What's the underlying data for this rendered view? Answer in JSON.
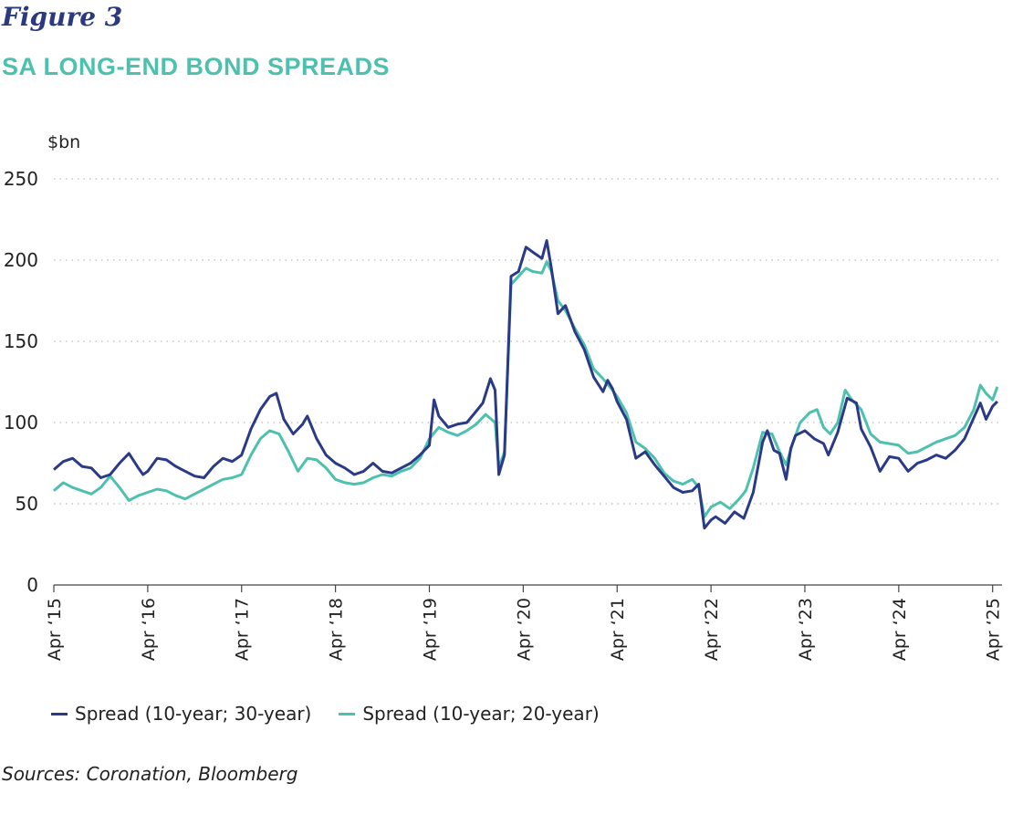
{
  "figure_label": "Figure 3",
  "source": "Sources: Coronation, Bloomberg",
  "colors": {
    "series1": "#2b3a86",
    "series2": "#4dc1ae",
    "title": "#4dc1ae",
    "grid": "#bbbbbb"
  },
  "chart_data": {
    "type": "line",
    "title": "SA LONG-END BOND SPREADS",
    "ylabel": "$bn",
    "xlabel": "",
    "ylim": [
      0,
      250
    ],
    "yticks": [
      0,
      50,
      100,
      150,
      200,
      250
    ],
    "xlim": [
      2015.25,
      2025.35
    ],
    "xticks": [
      {
        "label": "Apr ‘15",
        "x": 2015.25
      },
      {
        "label": "Apr ‘16",
        "x": 2016.25
      },
      {
        "label": "Apr ‘17",
        "x": 2017.25
      },
      {
        "label": "Apr ‘18",
        "x": 2018.25
      },
      {
        "label": "Apr ‘19",
        "x": 2019.25
      },
      {
        "label": "Apr ‘20",
        "x": 2020.25
      },
      {
        "label": "Apr ‘21",
        "x": 2021.25
      },
      {
        "label": "Apr ‘22",
        "x": 2022.25
      },
      {
        "label": "Apr ‘23",
        "x": 2023.25
      },
      {
        "label": "Apr ‘24",
        "x": 2024.25
      },
      {
        "label": "Apr ‘25",
        "x": 2025.25
      }
    ],
    "grid": "horizontal dotted",
    "legend_position": "bottom-left",
    "series": [
      {
        "name": "Spread (10-year; 30-year)",
        "color": "#2b3a86",
        "points": [
          [
            2015.25,
            71
          ],
          [
            2015.35,
            76
          ],
          [
            2015.45,
            78
          ],
          [
            2015.55,
            73
          ],
          [
            2015.65,
            72
          ],
          [
            2015.75,
            66
          ],
          [
            2015.85,
            68
          ],
          [
            2015.95,
            75
          ],
          [
            2016.05,
            81
          ],
          [
            2016.15,
            72
          ],
          [
            2016.2,
            68
          ],
          [
            2016.25,
            70
          ],
          [
            2016.35,
            78
          ],
          [
            2016.45,
            77
          ],
          [
            2016.55,
            73
          ],
          [
            2016.65,
            70
          ],
          [
            2016.75,
            67
          ],
          [
            2016.85,
            66
          ],
          [
            2016.95,
            73
          ],
          [
            2017.05,
            78
          ],
          [
            2017.15,
            76
          ],
          [
            2017.25,
            80
          ],
          [
            2017.35,
            96
          ],
          [
            2017.45,
            108
          ],
          [
            2017.55,
            116
          ],
          [
            2017.62,
            118
          ],
          [
            2017.7,
            102
          ],
          [
            2017.8,
            93
          ],
          [
            2017.9,
            99
          ],
          [
            2017.95,
            104
          ],
          [
            2018.05,
            90
          ],
          [
            2018.15,
            80
          ],
          [
            2018.25,
            75
          ],
          [
            2018.35,
            72
          ],
          [
            2018.45,
            68
          ],
          [
            2018.55,
            70
          ],
          [
            2018.65,
            75
          ],
          [
            2018.75,
            70
          ],
          [
            2018.85,
            69
          ],
          [
            2018.95,
            72
          ],
          [
            2019.05,
            75
          ],
          [
            2019.15,
            80
          ],
          [
            2019.25,
            86
          ],
          [
            2019.3,
            114
          ],
          [
            2019.35,
            104
          ],
          [
            2019.45,
            97
          ],
          [
            2019.55,
            99
          ],
          [
            2019.65,
            100
          ],
          [
            2019.75,
            107
          ],
          [
            2019.82,
            112
          ],
          [
            2019.9,
            127
          ],
          [
            2019.95,
            120
          ],
          [
            2019.99,
            68
          ],
          [
            2020.05,
            80
          ],
          [
            2020.12,
            190
          ],
          [
            2020.2,
            193
          ],
          [
            2020.28,
            208
          ],
          [
            2020.35,
            205
          ],
          [
            2020.45,
            201
          ],
          [
            2020.5,
            212
          ],
          [
            2020.55,
            195
          ],
          [
            2020.62,
            167
          ],
          [
            2020.7,
            172
          ],
          [
            2020.8,
            156
          ],
          [
            2020.9,
            145
          ],
          [
            2021.0,
            128
          ],
          [
            2021.1,
            119
          ],
          [
            2021.15,
            126
          ],
          [
            2021.2,
            121
          ],
          [
            2021.25,
            113
          ],
          [
            2021.35,
            102
          ],
          [
            2021.45,
            78
          ],
          [
            2021.55,
            82
          ],
          [
            2021.65,
            74
          ],
          [
            2021.75,
            67
          ],
          [
            2021.85,
            60
          ],
          [
            2021.95,
            57
          ],
          [
            2022.05,
            58
          ],
          [
            2022.12,
            62
          ],
          [
            2022.18,
            35
          ],
          [
            2022.25,
            40
          ],
          [
            2022.3,
            42
          ],
          [
            2022.4,
            38
          ],
          [
            2022.5,
            45
          ],
          [
            2022.6,
            41
          ],
          [
            2022.7,
            57
          ],
          [
            2022.8,
            88
          ],
          [
            2022.85,
            95
          ],
          [
            2022.92,
            83
          ],
          [
            2022.98,
            81
          ],
          [
            2023.05,
            65
          ],
          [
            2023.1,
            84
          ],
          [
            2023.15,
            92
          ],
          [
            2023.25,
            95
          ],
          [
            2023.35,
            90
          ],
          [
            2023.45,
            87
          ],
          [
            2023.5,
            80
          ],
          [
            2023.6,
            94
          ],
          [
            2023.7,
            115
          ],
          [
            2023.8,
            112
          ],
          [
            2023.85,
            96
          ],
          [
            2023.95,
            85
          ],
          [
            2024.05,
            70
          ],
          [
            2024.15,
            79
          ],
          [
            2024.25,
            78
          ],
          [
            2024.35,
            70
          ],
          [
            2024.45,
            75
          ],
          [
            2024.55,
            77
          ],
          [
            2024.65,
            80
          ],
          [
            2024.75,
            78
          ],
          [
            2024.85,
            83
          ],
          [
            2024.95,
            90
          ],
          [
            2025.05,
            103
          ],
          [
            2025.12,
            112
          ],
          [
            2025.18,
            102
          ],
          [
            2025.25,
            110
          ],
          [
            2025.3,
            113
          ]
        ]
      },
      {
        "name": "Spread (10-year; 20-year)",
        "color": "#4dc1ae",
        "points": [
          [
            2015.25,
            58
          ],
          [
            2015.35,
            63
          ],
          [
            2015.45,
            60
          ],
          [
            2015.55,
            58
          ],
          [
            2015.65,
            56
          ],
          [
            2015.75,
            60
          ],
          [
            2015.85,
            67
          ],
          [
            2015.95,
            60
          ],
          [
            2016.05,
            52
          ],
          [
            2016.15,
            55
          ],
          [
            2016.25,
            57
          ],
          [
            2016.35,
            59
          ],
          [
            2016.45,
            58
          ],
          [
            2016.55,
            55
          ],
          [
            2016.65,
            53
          ],
          [
            2016.75,
            56
          ],
          [
            2016.85,
            59
          ],
          [
            2016.95,
            62
          ],
          [
            2017.05,
            65
          ],
          [
            2017.15,
            66
          ],
          [
            2017.25,
            68
          ],
          [
            2017.35,
            80
          ],
          [
            2017.45,
            90
          ],
          [
            2017.55,
            95
          ],
          [
            2017.65,
            93
          ],
          [
            2017.75,
            82
          ],
          [
            2017.85,
            70
          ],
          [
            2017.95,
            78
          ],
          [
            2018.05,
            77
          ],
          [
            2018.15,
            72
          ],
          [
            2018.25,
            65
          ],
          [
            2018.35,
            63
          ],
          [
            2018.45,
            62
          ],
          [
            2018.55,
            63
          ],
          [
            2018.65,
            66
          ],
          [
            2018.75,
            68
          ],
          [
            2018.85,
            67
          ],
          [
            2018.95,
            70
          ],
          [
            2019.05,
            72
          ],
          [
            2019.15,
            78
          ],
          [
            2019.25,
            90
          ],
          [
            2019.35,
            97
          ],
          [
            2019.45,
            94
          ],
          [
            2019.55,
            92
          ],
          [
            2019.65,
            95
          ],
          [
            2019.75,
            99
          ],
          [
            2019.85,
            105
          ],
          [
            2019.95,
            100
          ],
          [
            2019.99,
            72
          ],
          [
            2020.05,
            82
          ],
          [
            2020.12,
            185
          ],
          [
            2020.2,
            190
          ],
          [
            2020.28,
            195
          ],
          [
            2020.35,
            193
          ],
          [
            2020.45,
            192
          ],
          [
            2020.5,
            199
          ],
          [
            2020.55,
            193
          ],
          [
            2020.62,
            175
          ],
          [
            2020.7,
            169
          ],
          [
            2020.8,
            158
          ],
          [
            2020.9,
            148
          ],
          [
            2021.0,
            133
          ],
          [
            2021.1,
            127
          ],
          [
            2021.2,
            120
          ],
          [
            2021.25,
            116
          ],
          [
            2021.35,
            106
          ],
          [
            2021.45,
            88
          ],
          [
            2021.55,
            84
          ],
          [
            2021.65,
            78
          ],
          [
            2021.75,
            69
          ],
          [
            2021.85,
            64
          ],
          [
            2021.95,
            62
          ],
          [
            2022.05,
            65
          ],
          [
            2022.12,
            60
          ],
          [
            2022.18,
            42
          ],
          [
            2022.25,
            48
          ],
          [
            2022.35,
            51
          ],
          [
            2022.45,
            47
          ],
          [
            2022.55,
            53
          ],
          [
            2022.62,
            58
          ],
          [
            2022.7,
            72
          ],
          [
            2022.8,
            94
          ],
          [
            2022.9,
            93
          ],
          [
            2022.98,
            82
          ],
          [
            2023.05,
            74
          ],
          [
            2023.12,
            87
          ],
          [
            2023.2,
            100
          ],
          [
            2023.3,
            106
          ],
          [
            2023.38,
            108
          ],
          [
            2023.45,
            97
          ],
          [
            2023.52,
            93
          ],
          [
            2023.6,
            100
          ],
          [
            2023.68,
            120
          ],
          [
            2023.75,
            114
          ],
          [
            2023.85,
            108
          ],
          [
            2023.95,
            93
          ],
          [
            2024.05,
            88
          ],
          [
            2024.15,
            87
          ],
          [
            2024.25,
            86
          ],
          [
            2024.35,
            81
          ],
          [
            2024.45,
            82
          ],
          [
            2024.55,
            85
          ],
          [
            2024.65,
            88
          ],
          [
            2024.75,
            90
          ],
          [
            2024.85,
            92
          ],
          [
            2024.95,
            97
          ],
          [
            2025.05,
            108
          ],
          [
            2025.12,
            123
          ],
          [
            2025.18,
            118
          ],
          [
            2025.25,
            114
          ],
          [
            2025.3,
            122
          ]
        ]
      }
    ]
  }
}
